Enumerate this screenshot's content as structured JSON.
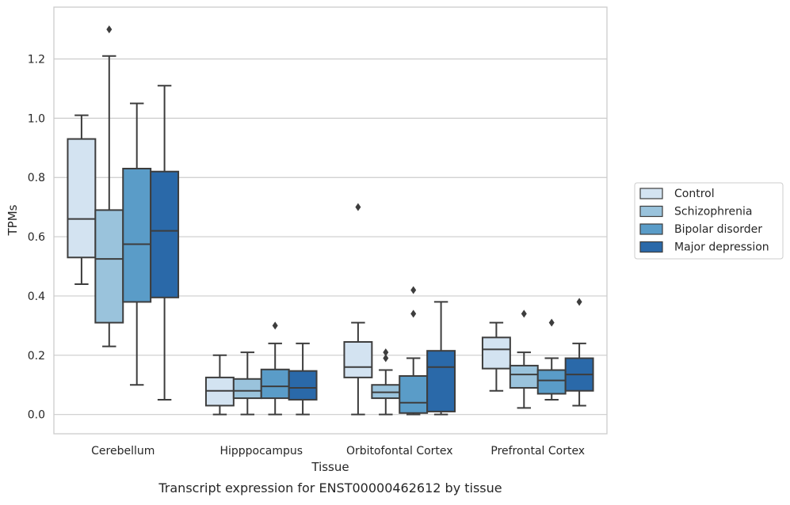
{
  "chart_data": {
    "type": "boxplot",
    "xlabel": "Tissue",
    "ylabel": "TPMs",
    "caption": "Transcript expression for ENST00000462612 by tissue",
    "ylim": [
      -0.065,
      1.375
    ],
    "yticks": [
      0.0,
      0.2,
      0.4,
      0.6,
      0.8,
      1.0,
      1.2
    ],
    "ytick_labels": [
      "0.0",
      "0.2",
      "0.4",
      "0.6",
      "0.8",
      "1.0",
      "1.2"
    ],
    "grid": "horizontal",
    "legend_position": "right",
    "categories": [
      "Cerebellum",
      "Hipppocampus",
      "Orbitofontal Cortex",
      "Prefrontal Cortex"
    ],
    "series": [
      {
        "name": "Control",
        "color": "#d3e3f1",
        "boxes": [
          {
            "whislo": 0.44,
            "q1": 0.53,
            "med": 0.66,
            "q3": 0.93,
            "whishi": 1.01,
            "fliers": []
          },
          {
            "whislo": 0.0,
            "q1": 0.03,
            "med": 0.08,
            "q3": 0.125,
            "whishi": 0.2,
            "fliers": []
          },
          {
            "whislo": 0.0,
            "q1": 0.125,
            "med": 0.16,
            "q3": 0.245,
            "whishi": 0.31,
            "fliers": [
              0.7
            ]
          },
          {
            "whislo": 0.08,
            "q1": 0.155,
            "med": 0.22,
            "q3": 0.26,
            "whishi": 0.31,
            "fliers": []
          }
        ]
      },
      {
        "name": "Schizophrenia",
        "color": "#9ac3dc",
        "boxes": [
          {
            "whislo": 0.23,
            "q1": 0.31,
            "med": 0.525,
            "q3": 0.69,
            "whishi": 1.21,
            "fliers": [
              1.3
            ]
          },
          {
            "whislo": 0.0,
            "q1": 0.055,
            "med": 0.08,
            "q3": 0.12,
            "whishi": 0.21,
            "fliers": []
          },
          {
            "whislo": 0.0,
            "q1": 0.055,
            "med": 0.075,
            "q3": 0.1,
            "whishi": 0.15,
            "fliers": [
              0.19,
              0.21
            ]
          },
          {
            "whislo": 0.022,
            "q1": 0.09,
            "med": 0.135,
            "q3": 0.165,
            "whishi": 0.21,
            "fliers": [
              0.34
            ]
          }
        ]
      },
      {
        "name": "Bipolar disorder",
        "color": "#5a9cc8",
        "boxes": [
          {
            "whislo": 0.1,
            "q1": 0.38,
            "med": 0.575,
            "q3": 0.83,
            "whishi": 1.05,
            "fliers": []
          },
          {
            "whislo": 0.0,
            "q1": 0.055,
            "med": 0.095,
            "q3": 0.152,
            "whishi": 0.24,
            "fliers": [
              0.3
            ]
          },
          {
            "whislo": 0.0,
            "q1": 0.005,
            "med": 0.04,
            "q3": 0.13,
            "whishi": 0.19,
            "fliers": [
              0.34,
              0.42
            ]
          },
          {
            "whislo": 0.05,
            "q1": 0.07,
            "med": 0.115,
            "q3": 0.15,
            "whishi": 0.19,
            "fliers": [
              0.31
            ]
          }
        ]
      },
      {
        "name": "Major depression",
        "color": "#2a69a9",
        "boxes": [
          {
            "whislo": 0.05,
            "q1": 0.395,
            "med": 0.62,
            "q3": 0.82,
            "whishi": 1.11,
            "fliers": []
          },
          {
            "whislo": 0.0,
            "q1": 0.05,
            "med": 0.09,
            "q3": 0.147,
            "whishi": 0.24,
            "fliers": []
          },
          {
            "whislo": 0.0,
            "q1": 0.01,
            "med": 0.16,
            "q3": 0.215,
            "whishi": 0.38,
            "fliers": []
          },
          {
            "whislo": 0.03,
            "q1": 0.08,
            "med": 0.135,
            "q3": 0.19,
            "whishi": 0.24,
            "fliers": [
              0.38
            ]
          }
        ]
      }
    ]
  }
}
